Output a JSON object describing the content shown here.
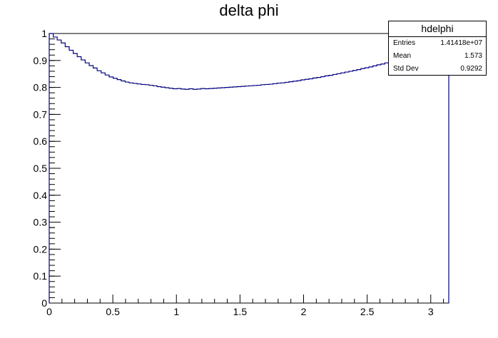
{
  "chart_data": {
    "type": "histogram",
    "title": "delta phi",
    "xlabel": "",
    "ylabel": "",
    "xlim": [
      0,
      3.1416
    ],
    "ylim": [
      0,
      1
    ],
    "x_ticks": [
      "0",
      "0.5",
      "1",
      "1.5",
      "2",
      "2.5",
      "3"
    ],
    "y_ticks": [
      "0",
      "0.1",
      "0.2",
      "0.3",
      "0.4",
      "0.5",
      "0.6",
      "0.7",
      "0.8",
      "0.9",
      "1"
    ],
    "line_color": "#000080",
    "bin_count": 100,
    "bin_values": [
      1.0,
      0.987,
      0.976,
      0.965,
      0.951,
      0.938,
      0.926,
      0.914,
      0.902,
      0.891,
      0.881,
      0.872,
      0.862,
      0.854,
      0.846,
      0.839,
      0.834,
      0.829,
      0.824,
      0.82,
      0.817,
      0.815,
      0.813,
      0.811,
      0.81,
      0.808,
      0.806,
      0.803,
      0.801,
      0.799,
      0.797,
      0.795,
      0.796,
      0.794,
      0.793,
      0.795,
      0.793,
      0.794,
      0.796,
      0.795,
      0.796,
      0.797,
      0.798,
      0.799,
      0.8,
      0.801,
      0.802,
      0.803,
      0.804,
      0.805,
      0.806,
      0.807,
      0.808,
      0.81,
      0.811,
      0.812,
      0.814,
      0.816,
      0.817,
      0.819,
      0.821,
      0.823,
      0.825,
      0.828,
      0.83,
      0.832,
      0.835,
      0.837,
      0.84,
      0.843,
      0.845,
      0.848,
      0.851,
      0.854,
      0.857,
      0.86,
      0.863,
      0.866,
      0.87,
      0.873,
      0.876,
      0.88,
      0.884,
      0.887,
      0.891,
      0.895,
      0.9,
      0.905,
      0.91,
      0.916,
      0.922,
      0.929,
      0.936,
      0.944,
      0.952,
      0.96,
      0.968,
      0.976,
      0.985,
      0.995
    ]
  },
  "stats_box": {
    "name": "hdelphi",
    "entries_label": "Entries",
    "entries_value": "1.41418e+07",
    "mean_label": "Mean",
    "mean_value": "1.573",
    "stddev_label": "Std Dev",
    "stddev_value": "0.9292"
  }
}
